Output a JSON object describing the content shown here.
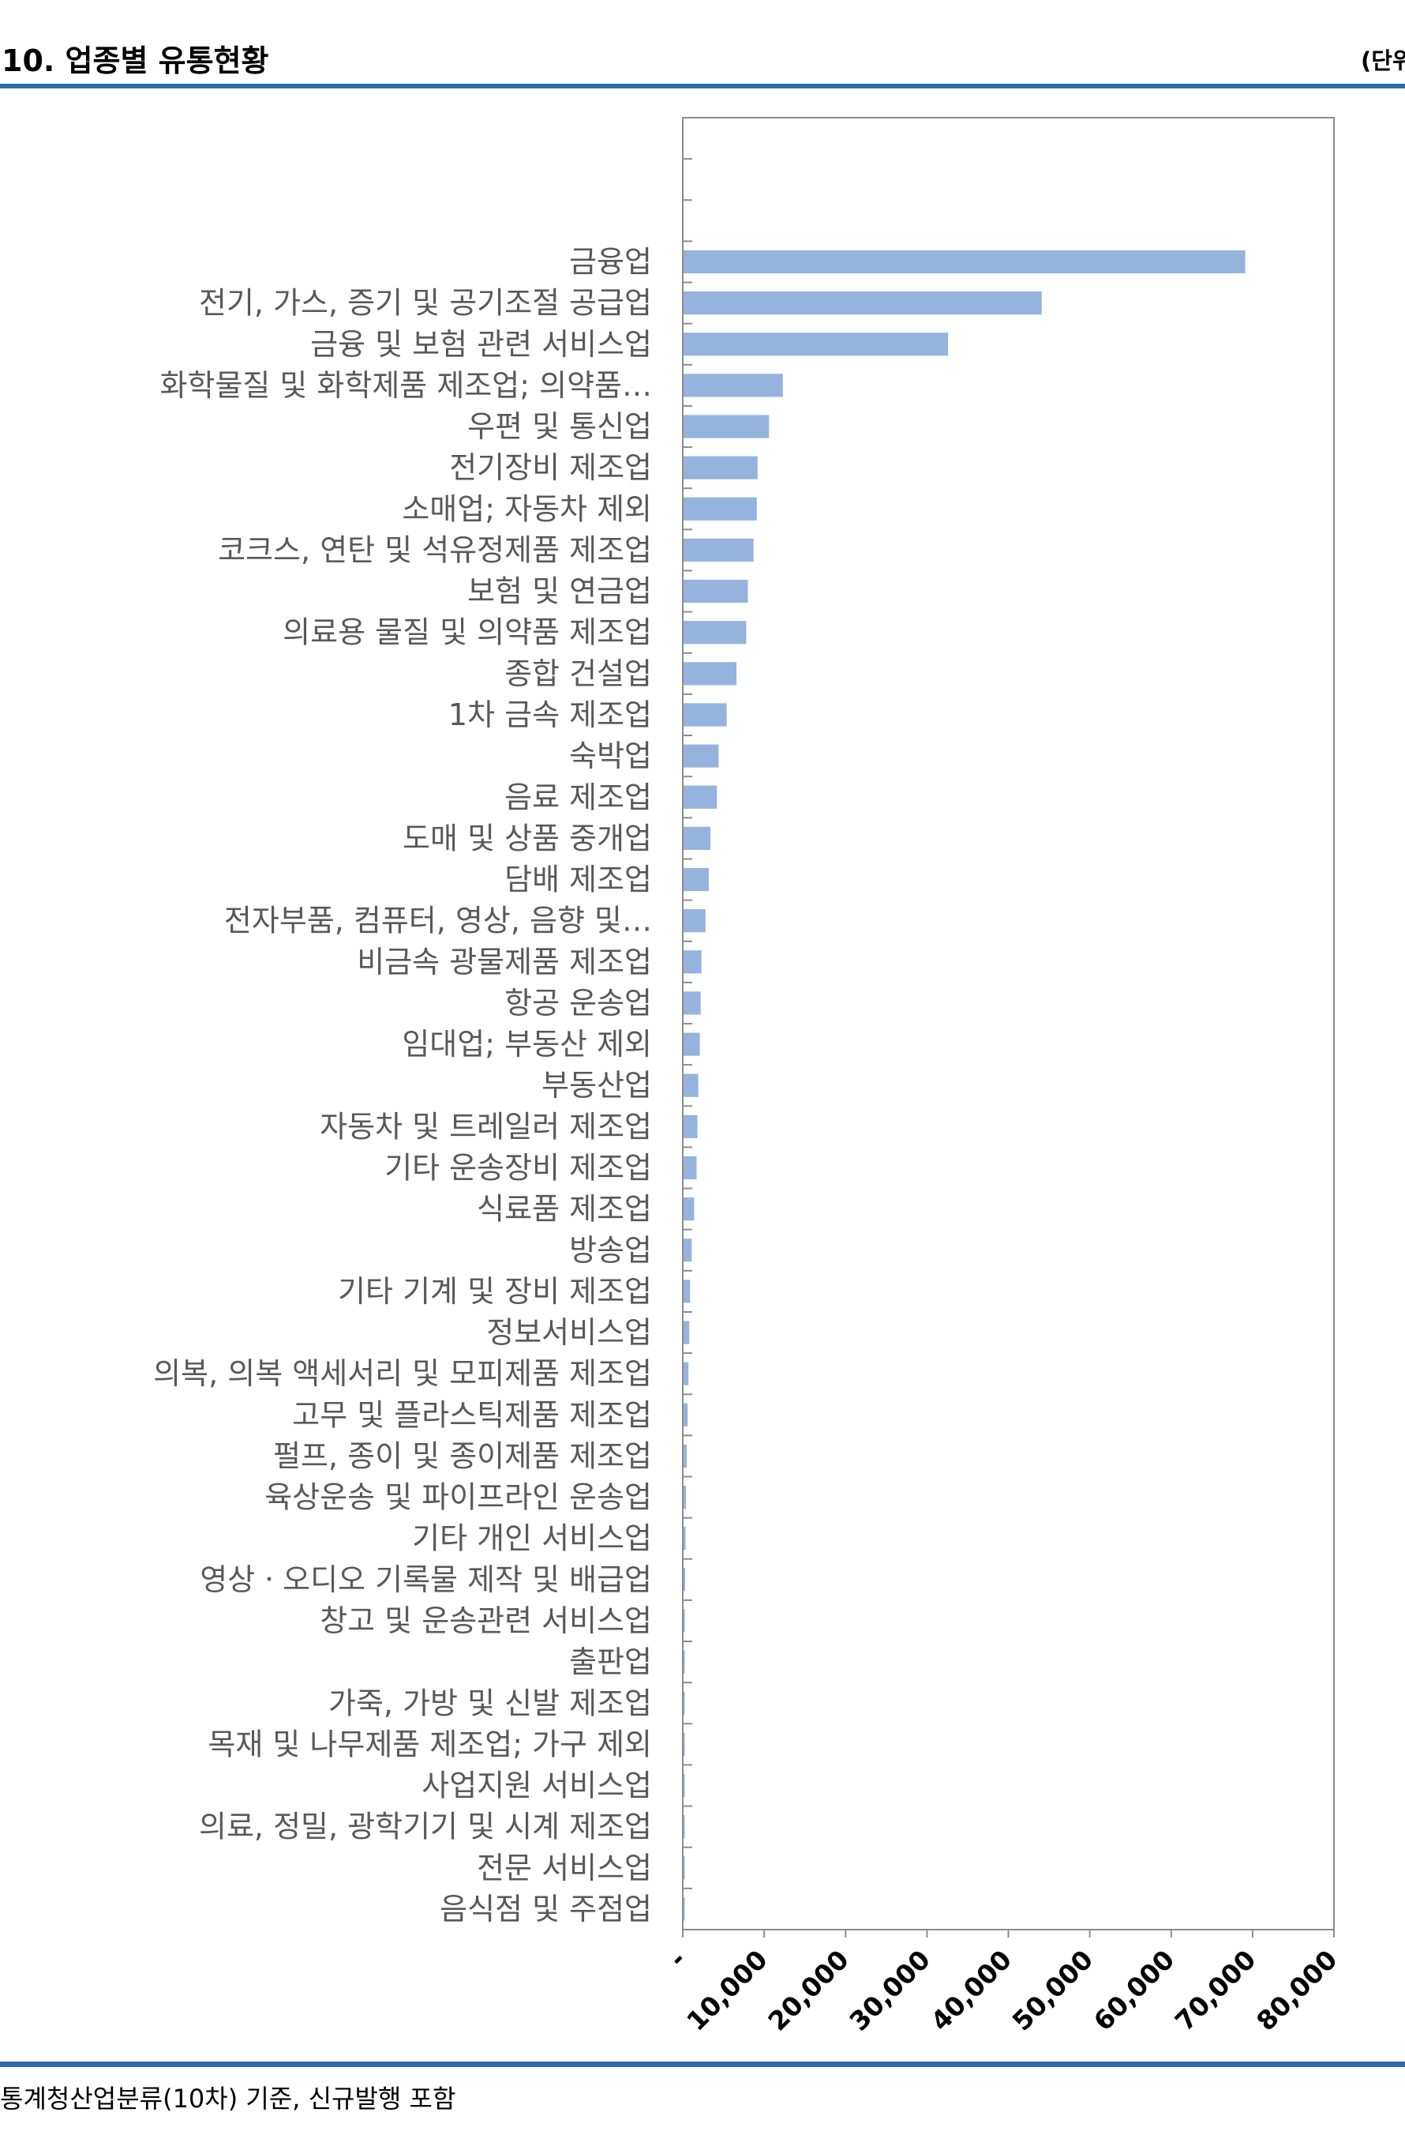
{
  "header": {
    "title": "10. 업종별 유통현황",
    "unit": "(단위"
  },
  "footnote": "통계청산업분류(10차) 기준, 신규발행 포함",
  "colors": {
    "bar": "#95b3dd",
    "rule": "#2f6ba8",
    "label": "#595959",
    "frame": "#8c8c8c"
  },
  "chart_data": {
    "type": "bar",
    "orientation": "horizontal",
    "categories": [
      "",
      "",
      "",
      "금융업",
      "전기, 가스, 증기 및 공기조절 공급업",
      "금융 및 보험 관련 서비스업",
      "화학물질 및 화학제품 제조업; 의약품…",
      "우편 및 통신업",
      "전기장비 제조업",
      "소매업; 자동차 제외",
      "코크스, 연탄 및 석유정제품 제조업",
      "보험 및 연금업",
      "의료용 물질 및 의약품 제조업",
      "종합 건설업",
      "1차 금속 제조업",
      "숙박업",
      "음료 제조업",
      "도매 및 상품 중개업",
      "담배 제조업",
      "전자부품, 컴퓨터, 영상, 음향 및…",
      "비금속 광물제품 제조업",
      "항공 운송업",
      "임대업; 부동산 제외",
      "부동산업",
      "자동차 및 트레일러 제조업",
      "기타 운송장비 제조업",
      "식료품 제조업",
      "방송업",
      "기타 기계 및 장비 제조업",
      "정보서비스업",
      "의복, 의복 액세서리 및 모피제품 제조업",
      "고무 및 플라스틱제품 제조업",
      "펄프, 종이 및 종이제품 제조업",
      "육상운송 및 파이프라인 운송업",
      "기타 개인 서비스업",
      "영상ㆍ오디오 기록물 제작 및 배급업",
      "창고 및 운송관련 서비스업",
      "출판업",
      "가죽, 가방 및 신발 제조업",
      "목재 및 나무제품 제조업; 가구 제외",
      "사업지원 서비스업",
      "의료, 정밀, 광학기기 및 시계 제조업",
      "전문 서비스업",
      "음식점 및 주점업"
    ],
    "values": [
      0,
      0,
      0,
      69000,
      44000,
      32500,
      12200,
      10500,
      9100,
      9000,
      8600,
      7900,
      7700,
      6500,
      5300,
      4300,
      4100,
      3300,
      3100,
      2700,
      2200,
      2100,
      2000,
      1800,
      1700,
      1600,
      1300,
      1000,
      800,
      700,
      600,
      500,
      400,
      300,
      250,
      200,
      150,
      100,
      80,
      60,
      50,
      40,
      30,
      20
    ],
    "xlim": [
      0,
      80000
    ],
    "xticks": [
      0,
      10000,
      20000,
      30000,
      40000,
      50000,
      60000,
      70000,
      80000
    ],
    "xtick_labels": [
      "-",
      "10,000",
      "20,000",
      "30,000",
      "40,000",
      "50,000",
      "60,000",
      "70,000",
      "80,000"
    ],
    "grid": false,
    "legend": "none"
  }
}
